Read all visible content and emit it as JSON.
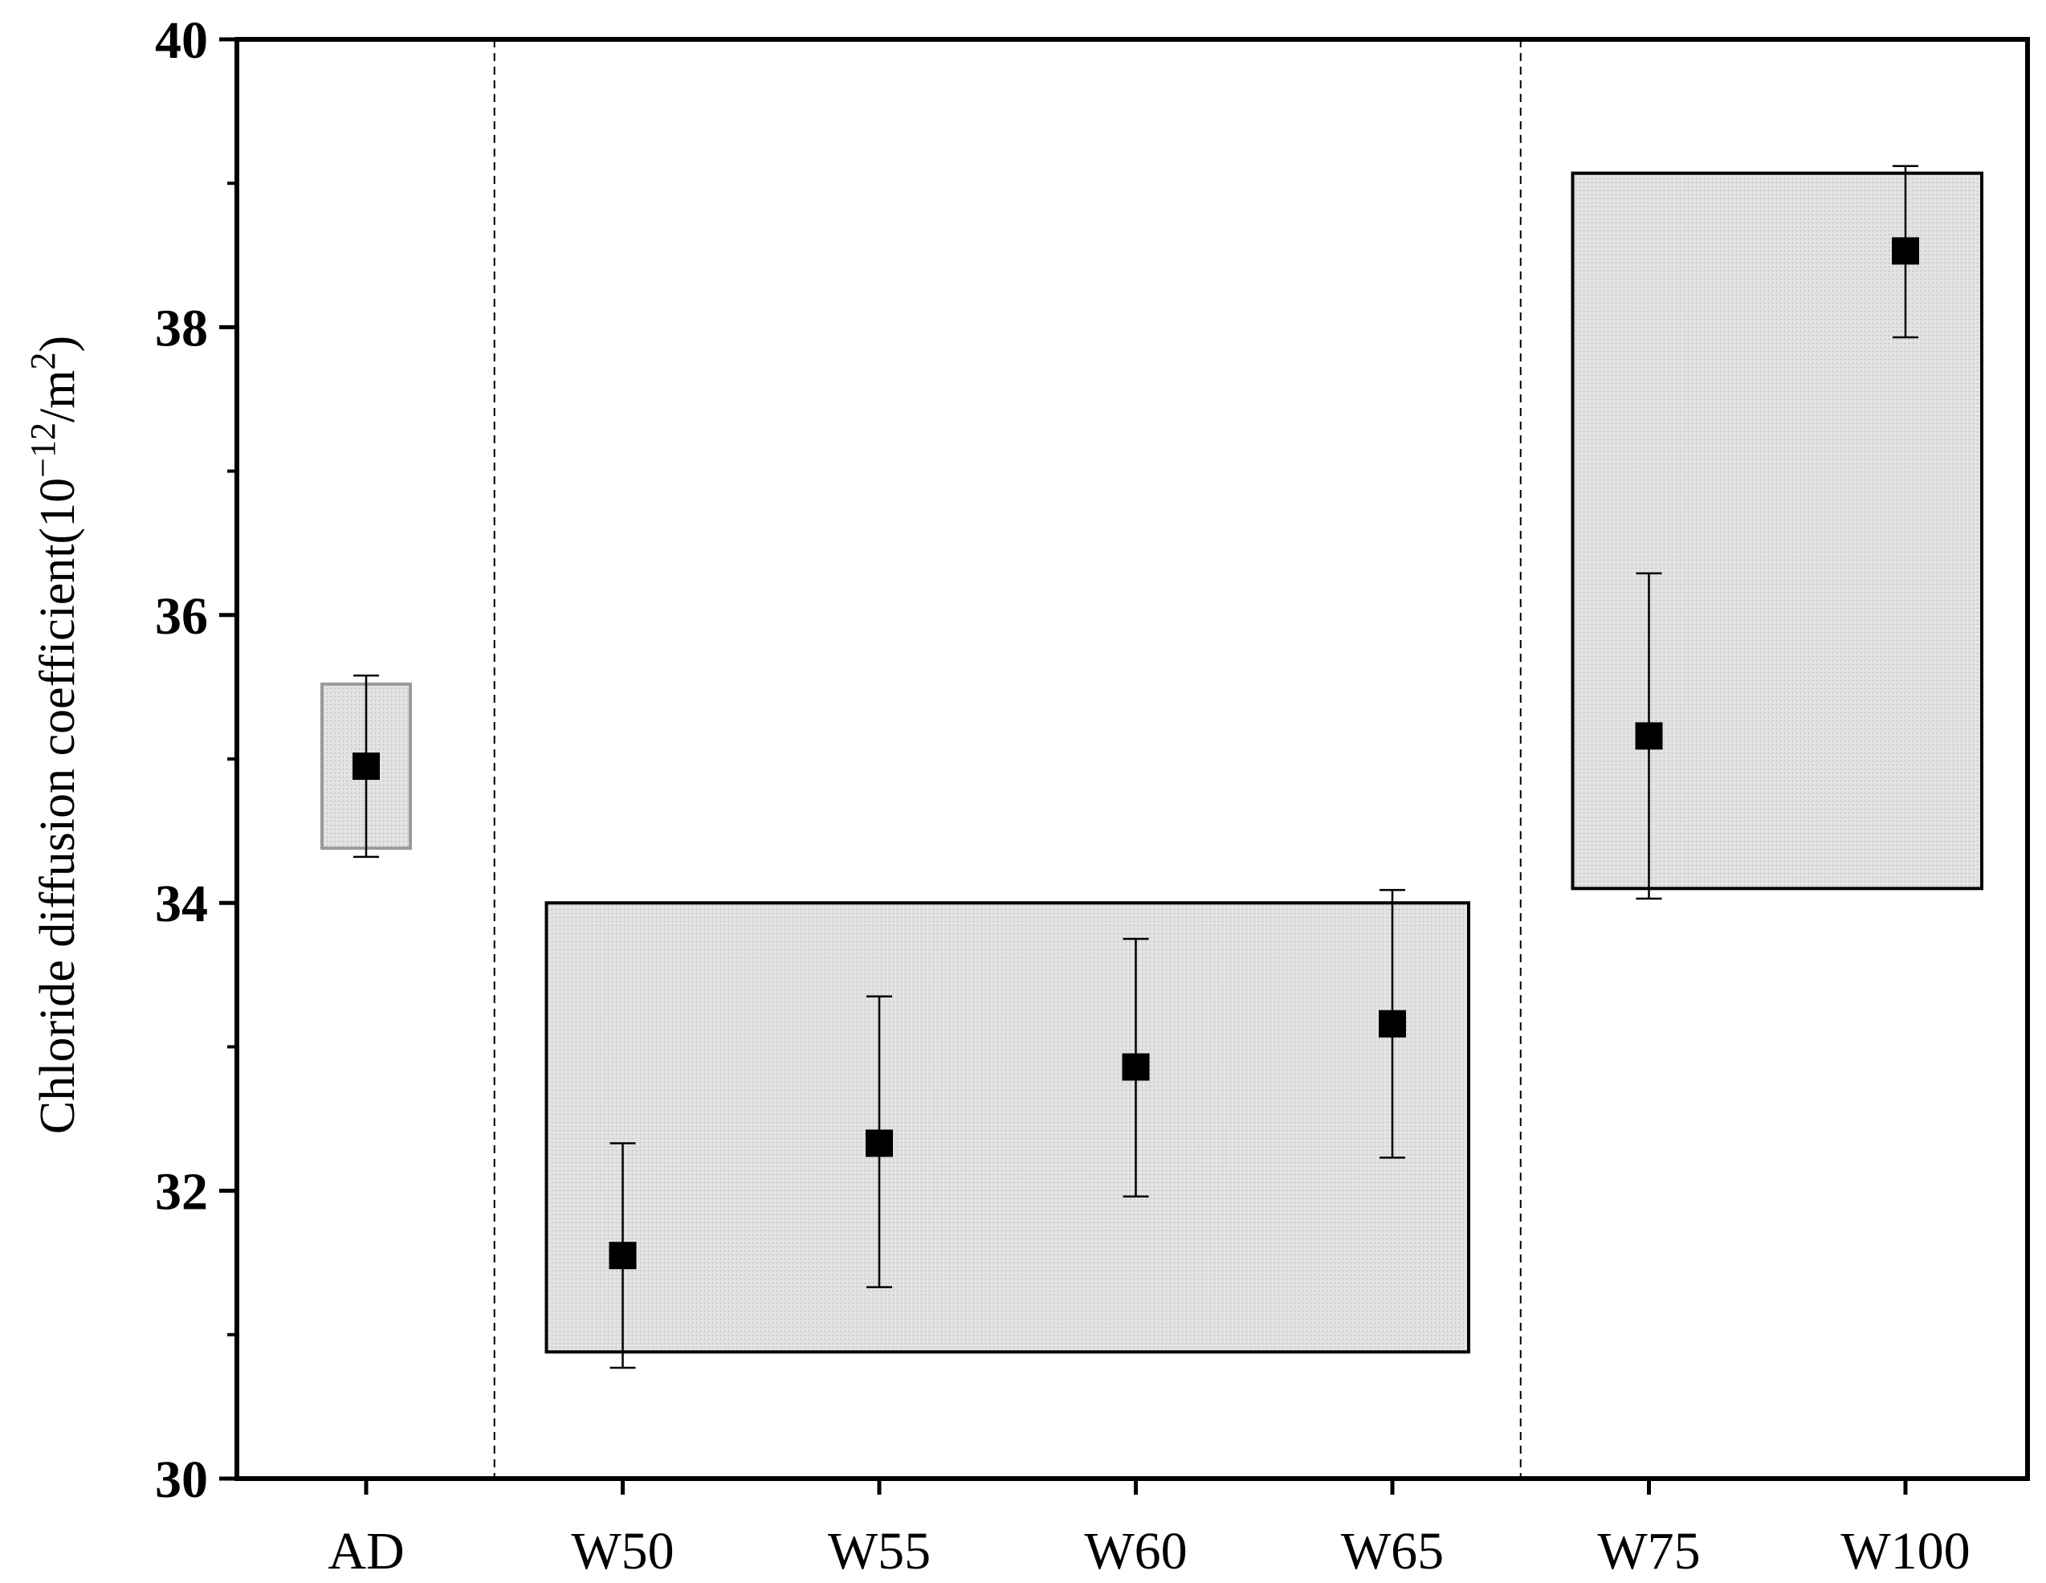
{
  "chart_data": {
    "type": "scatter",
    "categories": [
      "AD",
      "W50",
      "W55",
      "W60",
      "W65",
      "W75",
      "W100"
    ],
    "values": [
      34.95,
      31.55,
      32.33,
      32.86,
      33.16,
      35.16,
      38.53
    ],
    "error_low": [
      34.32,
      30.77,
      31.33,
      31.96,
      32.23,
      34.03,
      37.93
    ],
    "error_high": [
      35.58,
      32.33,
      33.35,
      33.75,
      34.09,
      36.29,
      39.12
    ],
    "ylabel": {
      "prefix": "Chloride diffusion coefficient(10",
      "exp1": "−12",
      "middle": "/m",
      "exp2": "2",
      "suffix": ")"
    },
    "xlabel": "",
    "ylim": [
      30,
      40
    ],
    "yticks": [
      30,
      32,
      34,
      36,
      38,
      40
    ],
    "yticks_minor": [
      31,
      33,
      35,
      37,
      39
    ],
    "grid": false,
    "group_separators_after": [
      "AD",
      "W65"
    ],
    "shaded_regions": [
      {
        "from_category": "AD",
        "to_category": "AD",
        "y_low": 34.38,
        "y_high": 35.52,
        "border": "#9a9a9a"
      },
      {
        "from_category": "W50",
        "to_category": "W65",
        "y_low": 30.88,
        "y_high": 34.0,
        "border": "#000000"
      },
      {
        "from_category": "W75",
        "to_category": "W100",
        "y_low": 34.1,
        "y_high": 39.07,
        "border": "#000000"
      }
    ],
    "colors": {
      "marker": "#000000",
      "shade_fill": "#e3e3e3",
      "shade_dot": "#b8b8b8"
    }
  }
}
